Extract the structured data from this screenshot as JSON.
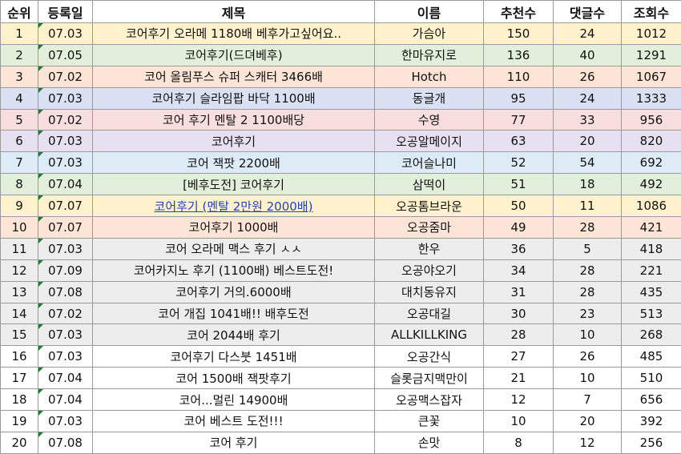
{
  "table": {
    "header": [
      "순위",
      "등록일",
      "제목",
      "이름",
      "추천수",
      "댓글수",
      "조회수"
    ],
    "rows": [
      [
        1,
        "07.03",
        "코어후기 오라메 1180배 베후가고싶어요..",
        "가슴아",
        150,
        24,
        1012
      ],
      [
        2,
        "07.05",
        "코어후기(드뎌베후)",
        "한마유지로",
        136,
        40,
        1291
      ],
      [
        3,
        "07.02",
        "코어 올림푸스 슈퍼 스캐터 3466배",
        "Hotch",
        110,
        26,
        1067
      ],
      [
        4,
        "07.03",
        "코어후기 슬라임팝 바닥 1100배",
        "동글개",
        95,
        24,
        1333
      ],
      [
        5,
        "07.02",
        "코어 후기 멘탈 2 1100배당",
        "수영",
        77,
        33,
        956
      ],
      [
        6,
        "07.03",
        "코어후기",
        "오공알메이지",
        63,
        20,
        820
      ],
      [
        7,
        "07.03",
        "코어 잭팟 2200배",
        "코어슬나미",
        52,
        54,
        692
      ],
      [
        8,
        "07.04",
        "[베후도전] 코어후기",
        "삼떡이",
        51,
        18,
        492
      ],
      [
        9,
        "07.07",
        "코어후기 (멘탈 2만원 2000배)",
        "오공톰브라운",
        50,
        11,
        1086
      ],
      [
        10,
        "07.07",
        "코어후기 1000배",
        "오공줌마",
        49,
        28,
        421
      ],
      [
        11,
        "07.03",
        "코어 오라메 맥스 후기 ㅅㅅ",
        "한우",
        36,
        5,
        418
      ],
      [
        12,
        "07.09",
        "코어카지노 후기 (1100배) 베스트도전!",
        "오공야오기",
        34,
        28,
        221
      ],
      [
        13,
        "07.08",
        "코어후기 거의.6000배",
        "대치동유지",
        31,
        28,
        435
      ],
      [
        14,
        "07.02",
        "코어 개집 1041배!! 배후도전",
        "오공대길",
        30,
        23,
        513
      ],
      [
        15,
        "07.03",
        "코어 2044배 후기",
        "ALLKILLKING",
        28,
        10,
        268
      ],
      [
        16,
        "07.03",
        "코어후기 다스붓 1451배",
        "오공간식",
        27,
        26,
        485
      ],
      [
        17,
        "07.04",
        "코어 1500배 잭팟후기",
        "슬롯금지맥만이",
        21,
        10,
        510
      ],
      [
        18,
        "07.04",
        "코어...멀린 14900배",
        "오공맥스잡자",
        12,
        7,
        656
      ],
      [
        19,
        "07.03",
        "코어 베스트 도전!!!",
        "큰꽃",
        10,
        20,
        392
      ],
      [
        20,
        "07.08",
        "코어 후기",
        "손맛",
        8,
        12,
        256
      ]
    ]
  }
}
